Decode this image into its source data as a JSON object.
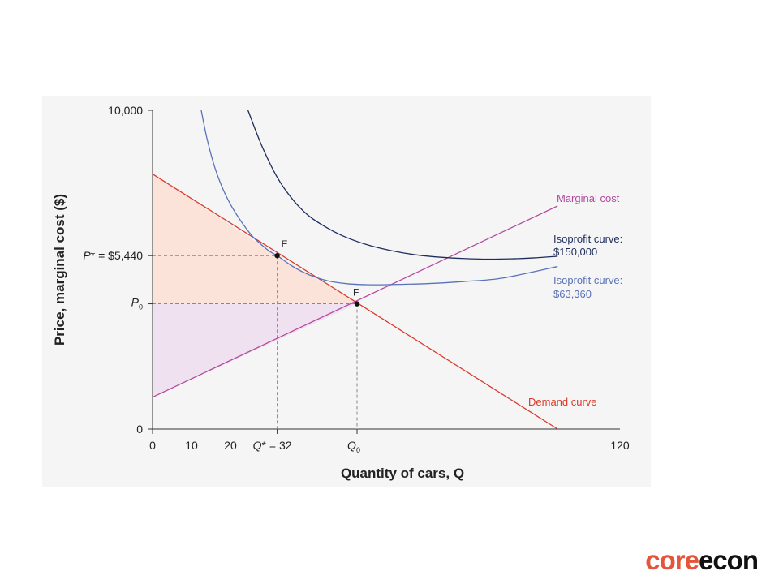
{
  "chart_data": {
    "type": "line",
    "xlabel": "Quantity of cars, Q",
    "ylabel": "Price, marginal cost ($)",
    "xlim": [
      0,
      120
    ],
    "ylim": [
      0,
      10000
    ],
    "x_tick_labels": [
      "0",
      "10",
      "20",
      "120"
    ],
    "y_tick_labels": [
      "10,000",
      "0"
    ],
    "special_x_labels": {
      "qstar": "Q* = 32",
      "q0": "Q0"
    },
    "special_y_labels": {
      "pstar": "P* = $5,440",
      "p0": "P0"
    },
    "points": {
      "E": {
        "label": "E",
        "x": 32,
        "y": 5440
      },
      "F": {
        "label": "F",
        "x": 52.5,
        "y": 3930
      }
    },
    "series": [
      {
        "name": "Demand curve",
        "color": "#d93a2b",
        "x": [
          0,
          104
        ],
        "y": [
          8000,
          0
        ]
      },
      {
        "name": "Marginal cost",
        "color": "#b5489f",
        "x": [
          0,
          104
        ],
        "y": [
          1000,
          7000
        ]
      },
      {
        "name": "Isoprofit curve: $150,000",
        "color": "#1e2d5c",
        "x": [
          24.5,
          28,
          32,
          36,
          40,
          45,
          50,
          56,
          62,
          68,
          74,
          80,
          86,
          92,
          98,
          104
        ],
        "y": [
          10000,
          8900,
          7900,
          7200,
          6700,
          6300,
          6000,
          5750,
          5580,
          5460,
          5390,
          5350,
          5330,
          5340,
          5370,
          5420
        ]
      },
      {
        "name": "Isoprofit curve: $63,360",
        "color": "#5a73b8",
        "x": [
          12.5,
          14,
          16,
          18,
          20,
          22,
          24,
          26,
          28,
          30,
          32,
          36,
          40,
          45,
          50,
          55,
          60,
          70,
          80,
          90,
          104
        ],
        "y": [
          10000,
          9100,
          8200,
          7550,
          7050,
          6650,
          6300,
          6000,
          5780,
          5580,
          5440,
          5100,
          4850,
          4650,
          4560,
          4530,
          4530,
          4560,
          4630,
          4740,
          5100
        ]
      }
    ],
    "shaded_regions": [
      {
        "name": "consumer-surplus",
        "color": "#fbe3d9"
      },
      {
        "name": "producer-surplus",
        "color": "#efe1ef"
      }
    ],
    "curve_labels": {
      "marginal_cost": "Marginal cost",
      "iso150_line1": "Isoprofit curve:",
      "iso150_line2": "$150,000",
      "iso63_line1": "Isoprofit curve:",
      "iso63_line2": "$63,360",
      "demand": "Demand curve"
    }
  },
  "brand": {
    "core": "core",
    "econ": "econ"
  }
}
